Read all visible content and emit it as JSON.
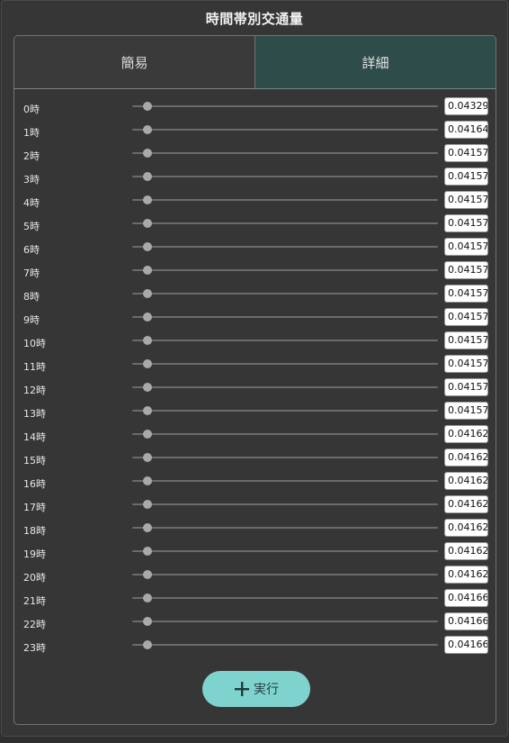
{
  "title": "時間帯別交通量",
  "tabs": {
    "simple": "簡易",
    "detail": "詳細",
    "active": "detail"
  },
  "rows": [
    {
      "label": "0時",
      "value": "0.04329",
      "slider": 0.05
    },
    {
      "label": "1時",
      "value": "0.04164",
      "slider": 0.05
    },
    {
      "label": "2時",
      "value": "0.04157",
      "slider": 0.05
    },
    {
      "label": "3時",
      "value": "0.04157",
      "slider": 0.05
    },
    {
      "label": "4時",
      "value": "0.04157",
      "slider": 0.05
    },
    {
      "label": "5時",
      "value": "0.04157",
      "slider": 0.05
    },
    {
      "label": "6時",
      "value": "0.04157",
      "slider": 0.05
    },
    {
      "label": "7時",
      "value": "0.04157",
      "slider": 0.05
    },
    {
      "label": "8時",
      "value": "0.04157",
      "slider": 0.05
    },
    {
      "label": "9時",
      "value": "0.04157",
      "slider": 0.05
    },
    {
      "label": "10時",
      "value": "0.04157",
      "slider": 0.05
    },
    {
      "label": "11時",
      "value": "0.04157",
      "slider": 0.05
    },
    {
      "label": "12時",
      "value": "0.04157",
      "slider": 0.05
    },
    {
      "label": "13時",
      "value": "0.04157",
      "slider": 0.05
    },
    {
      "label": "14時",
      "value": "0.04162",
      "slider": 0.05
    },
    {
      "label": "15時",
      "value": "0.04162",
      "slider": 0.05
    },
    {
      "label": "16時",
      "value": "0.04162",
      "slider": 0.05
    },
    {
      "label": "17時",
      "value": "0.04162",
      "slider": 0.05
    },
    {
      "label": "18時",
      "value": "0.04162",
      "slider": 0.05
    },
    {
      "label": "19時",
      "value": "0.04162",
      "slider": 0.05
    },
    {
      "label": "20時",
      "value": "0.04162",
      "slider": 0.05
    },
    {
      "label": "21時",
      "value": "0.04166",
      "slider": 0.05
    },
    {
      "label": "22時",
      "value": "0.04166",
      "slider": 0.05
    },
    {
      "label": "23時",
      "value": "0.04166",
      "slider": 0.05
    }
  ],
  "execute": {
    "label": "実行",
    "icon": "plus-icon"
  },
  "colors": {
    "accent": "#7fd3cf",
    "active_tab": "#2e4c4a",
    "background": "#363636"
  }
}
